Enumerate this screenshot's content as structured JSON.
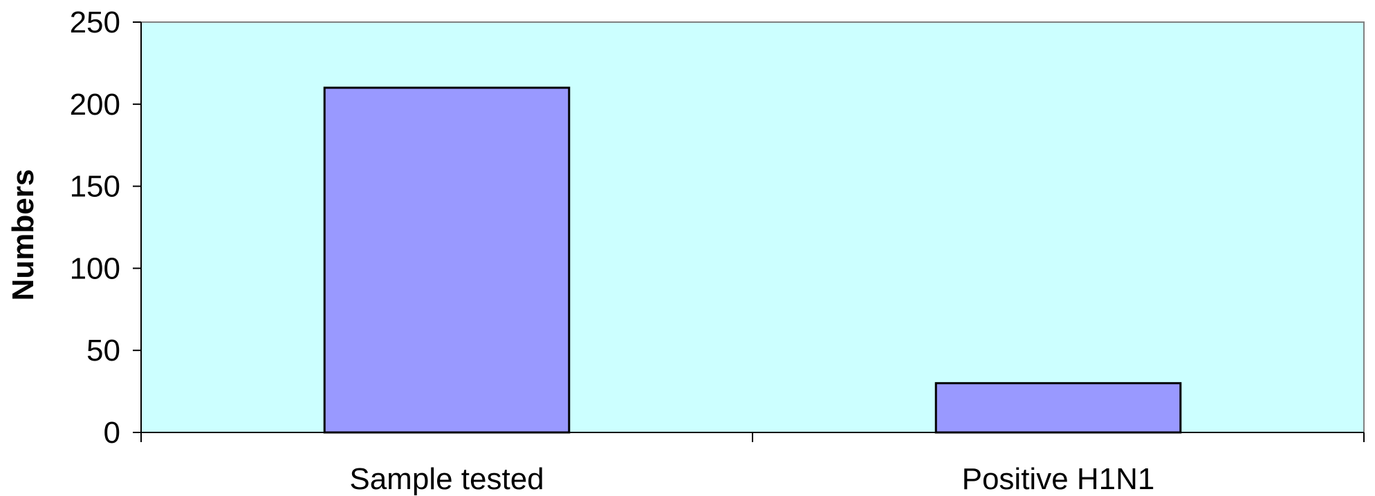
{
  "chart_data": {
    "type": "bar",
    "categories": [
      "Sample tested",
      "Positive H1N1"
    ],
    "values": [
      210,
      30
    ],
    "ylabel": "Numbers",
    "xlabel": "",
    "ylim": [
      0,
      250
    ],
    "yticks": [
      0,
      50,
      100,
      150,
      200,
      250
    ],
    "grid": false,
    "legend": "none",
    "colors": {
      "plot_background": "#ccffff",
      "bar_fill": "#9999ff",
      "bar_stroke": "#000000",
      "axis": "#000000",
      "plot_border": "#808080"
    }
  }
}
